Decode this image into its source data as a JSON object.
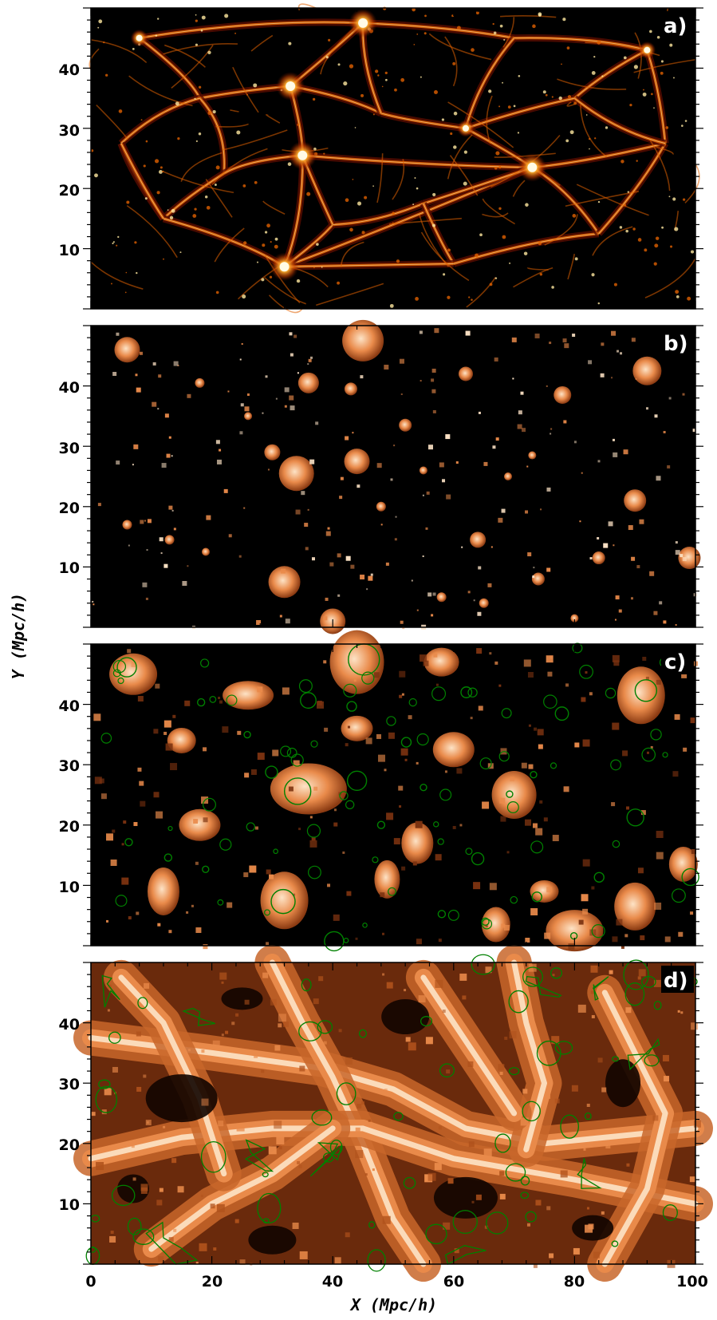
{
  "figure": {
    "xlabel": "X (Mpc/h)",
    "ylabel": "Y (Mpc/h)",
    "x_ticks": [
      "0",
      "20",
      "40",
      "60",
      "80",
      "100"
    ],
    "y_ticks": [
      "10",
      "20",
      "30",
      "40"
    ],
    "panels": [
      {
        "id": "a",
        "label": "a)",
        "content": "density field",
        "colormap": "heat"
      },
      {
        "id": "b",
        "label": "b)",
        "content": "halo blobs",
        "colormap": "copper"
      },
      {
        "id": "c",
        "label": "c)",
        "content": "halo blobs with contours",
        "colormap": "copper",
        "contour_color": "#008000"
      },
      {
        "id": "d",
        "label": "d)",
        "content": "filament network with contours",
        "colormap": "copper",
        "contour_color": "#008000"
      }
    ]
  },
  "axes_ranges": {
    "x": [
      0,
      100
    ],
    "y": [
      0,
      50
    ]
  },
  "colors": {
    "background": "#000000",
    "heat_dim": "#5a0d00",
    "heat_mid": "#e06000",
    "heat_bright": "#ffe9a0",
    "copper_dim": "#7a3210",
    "copper_mid": "#e98a4a",
    "copper_bright": "#fde3c6",
    "contour": "#008000",
    "label_bg": "#000000",
    "label_text": "#ffffff"
  }
}
